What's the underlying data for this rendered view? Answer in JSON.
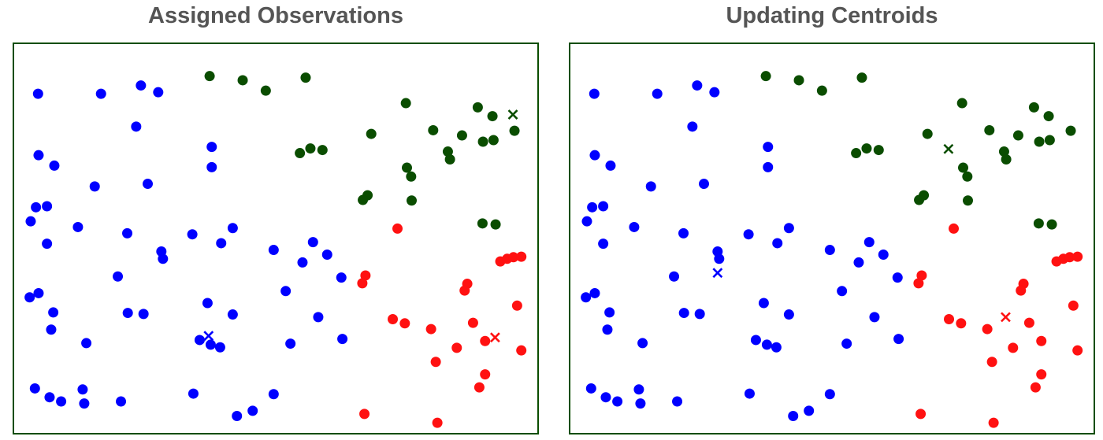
{
  "colors": {
    "blue": "#0000ff",
    "green": "#0a4d00",
    "red": "#ff1111",
    "frame": "#0a4d00",
    "title": "#555555"
  },
  "chart_data": [
    {
      "type": "scatter",
      "title": "Assigned Observations",
      "xlim": [
        0,
        100
      ],
      "ylim": [
        0,
        75
      ],
      "grid": false,
      "series": [
        {
          "color": "blue",
          "marker": "circle",
          "points": [
            [
              4.7,
              65.3
            ],
            [
              16.7,
              65.3
            ],
            [
              24.3,
              66.9
            ],
            [
              27.6,
              65.6
            ],
            [
              23.4,
              59.0
            ],
            [
              37.8,
              55.1
            ],
            [
              37.8,
              51.2
            ],
            [
              4.8,
              53.5
            ],
            [
              7.8,
              51.5
            ],
            [
              4.3,
              43.5
            ],
            [
              6.4,
              43.7
            ],
            [
              25.6,
              48.0
            ],
            [
              15.5,
              47.5
            ],
            [
              3.3,
              40.8
            ],
            [
              12.3,
              39.7
            ],
            [
              6.4,
              36.5
            ],
            [
              21.7,
              38.5
            ],
            [
              28.2,
              35.0
            ],
            [
              28.5,
              33.6
            ],
            [
              34.1,
              38.3
            ],
            [
              39.6,
              36.6
            ],
            [
              41.8,
              39.5
            ],
            [
              49.6,
              35.3
            ],
            [
              57.1,
              36.8
            ],
            [
              59.8,
              34.4
            ],
            [
              55.1,
              32.9
            ],
            [
              62.5,
              30.0
            ],
            [
              19.9,
              30.2
            ],
            [
              3.1,
              26.2
            ],
            [
              4.8,
              27.0
            ],
            [
              7.6,
              23.3
            ],
            [
              37.0,
              25.1
            ],
            [
              51.9,
              27.4
            ],
            [
              21.8,
              23.2
            ],
            [
              24.8,
              23.0
            ],
            [
              41.8,
              22.9
            ],
            [
              58.1,
              22.4
            ],
            [
              7.2,
              20.0
            ],
            [
              13.9,
              17.4
            ],
            [
              35.5,
              18.0
            ],
            [
              37.6,
              17.1
            ],
            [
              39.4,
              16.6
            ],
            [
              52.8,
              17.3
            ],
            [
              62.7,
              18.2
            ],
            [
              4.1,
              8.7
            ],
            [
              6.9,
              7.0
            ],
            [
              9.1,
              6.2
            ],
            [
              13.2,
              8.5
            ],
            [
              13.5,
              5.8
            ],
            [
              20.5,
              6.2
            ],
            [
              34.3,
              7.7
            ],
            [
              42.6,
              3.4
            ],
            [
              45.6,
              4.4
            ],
            [
              49.6,
              7.6
            ]
          ]
        },
        {
          "color": "green",
          "marker": "circle",
          "points": [
            [
              37.4,
              68.7
            ],
            [
              43.7,
              67.9
            ],
            [
              48.1,
              65.9
            ],
            [
              55.7,
              68.4
            ],
            [
              74.8,
              63.5
            ],
            [
              68.2,
              57.6
            ],
            [
              80.0,
              58.3
            ],
            [
              85.5,
              57.3
            ],
            [
              88.5,
              62.7
            ],
            [
              91.3,
              61.0
            ],
            [
              54.6,
              53.9
            ],
            [
              56.6,
              54.8
            ],
            [
              58.9,
              54.5
            ],
            [
              82.8,
              54.2
            ],
            [
              83.2,
              52.7
            ],
            [
              75.0,
              51.1
            ],
            [
              75.8,
              49.4
            ],
            [
              67.5,
              45.8
            ],
            [
              66.6,
              44.9
            ],
            [
              75.9,
              44.8
            ],
            [
              89.5,
              56.1
            ],
            [
              91.5,
              56.4
            ],
            [
              95.5,
              58.2
            ],
            [
              89.4,
              40.4
            ],
            [
              91.9,
              40.2
            ]
          ]
        },
        {
          "color": "red",
          "marker": "circle",
          "points": [
            [
              73.2,
              39.4
            ],
            [
              92.8,
              33.1
            ],
            [
              94.1,
              33.6
            ],
            [
              95.3,
              33.9
            ],
            [
              96.8,
              34.0
            ],
            [
              67.1,
              30.4
            ],
            [
              66.5,
              28.9
            ],
            [
              86.5,
              28.8
            ],
            [
              86.0,
              27.5
            ],
            [
              96.0,
              24.6
            ],
            [
              72.3,
              22.0
            ],
            [
              74.6,
              21.2
            ],
            [
              79.6,
              20.1
            ],
            [
              87.6,
              21.3
            ],
            [
              89.9,
              17.8
            ],
            [
              84.5,
              16.5
            ],
            [
              96.8,
              16.0
            ],
            [
              80.5,
              13.8
            ],
            [
              89.9,
              11.4
            ],
            [
              88.8,
              8.9
            ],
            [
              66.9,
              3.8
            ],
            [
              80.8,
              2.1
            ]
          ]
        },
        {
          "color": "blue",
          "marker": "x",
          "points": [
            [
              37.2,
              18.8
            ]
          ]
        },
        {
          "color": "green",
          "marker": "x",
          "points": [
            [
              95.2,
              61.3
            ]
          ]
        },
        {
          "color": "red",
          "marker": "x",
          "points": [
            [
              91.8,
              18.5
            ]
          ]
        }
      ]
    },
    {
      "type": "scatter",
      "title": "Updating Centroids",
      "xlim": [
        0,
        100
      ],
      "ylim": [
        0,
        75
      ],
      "grid": false,
      "series": [
        {
          "color": "blue",
          "marker": "circle",
          "points": [
            [
              4.7,
              65.3
            ],
            [
              16.7,
              65.3
            ],
            [
              24.3,
              66.9
            ],
            [
              27.6,
              65.6
            ],
            [
              23.4,
              59.0
            ],
            [
              37.8,
              55.1
            ],
            [
              37.8,
              51.2
            ],
            [
              4.8,
              53.5
            ],
            [
              7.8,
              51.5
            ],
            [
              4.3,
              43.5
            ],
            [
              6.4,
              43.7
            ],
            [
              25.6,
              48.0
            ],
            [
              15.5,
              47.5
            ],
            [
              3.3,
              40.8
            ],
            [
              12.3,
              39.7
            ],
            [
              6.4,
              36.5
            ],
            [
              21.7,
              38.5
            ],
            [
              28.2,
              35.0
            ],
            [
              28.5,
              33.6
            ],
            [
              34.1,
              38.3
            ],
            [
              39.6,
              36.6
            ],
            [
              41.8,
              39.5
            ],
            [
              49.6,
              35.3
            ],
            [
              57.1,
              36.8
            ],
            [
              59.8,
              34.4
            ],
            [
              55.1,
              32.9
            ],
            [
              62.5,
              30.0
            ],
            [
              19.9,
              30.2
            ],
            [
              3.1,
              26.2
            ],
            [
              4.8,
              27.0
            ],
            [
              7.6,
              23.3
            ],
            [
              37.0,
              25.1
            ],
            [
              51.9,
              27.4
            ],
            [
              21.8,
              23.2
            ],
            [
              24.8,
              23.0
            ],
            [
              41.8,
              22.9
            ],
            [
              58.1,
              22.4
            ],
            [
              7.2,
              20.0
            ],
            [
              13.9,
              17.4
            ],
            [
              35.5,
              18.0
            ],
            [
              37.6,
              17.1
            ],
            [
              39.4,
              16.6
            ],
            [
              52.8,
              17.3
            ],
            [
              62.7,
              18.2
            ],
            [
              4.1,
              8.7
            ],
            [
              6.9,
              7.0
            ],
            [
              9.1,
              6.2
            ],
            [
              13.2,
              8.5
            ],
            [
              13.5,
              5.8
            ],
            [
              20.5,
              6.2
            ],
            [
              34.3,
              7.7
            ],
            [
              42.6,
              3.4
            ],
            [
              45.6,
              4.4
            ],
            [
              49.6,
              7.6
            ]
          ]
        },
        {
          "color": "green",
          "marker": "circle",
          "points": [
            [
              37.4,
              68.7
            ],
            [
              43.7,
              67.9
            ],
            [
              48.1,
              65.9
            ],
            [
              55.7,
              68.4
            ],
            [
              74.8,
              63.5
            ],
            [
              68.2,
              57.6
            ],
            [
              80.0,
              58.3
            ],
            [
              85.5,
              57.3
            ],
            [
              88.5,
              62.7
            ],
            [
              91.3,
              61.0
            ],
            [
              54.6,
              53.9
            ],
            [
              56.6,
              54.8
            ],
            [
              58.9,
              54.5
            ],
            [
              82.8,
              54.2
            ],
            [
              83.2,
              52.7
            ],
            [
              75.0,
              51.1
            ],
            [
              75.8,
              49.4
            ],
            [
              67.5,
              45.8
            ],
            [
              66.6,
              44.9
            ],
            [
              75.9,
              44.8
            ],
            [
              89.5,
              56.1
            ],
            [
              91.5,
              56.4
            ],
            [
              95.5,
              58.2
            ],
            [
              89.4,
              40.4
            ],
            [
              91.9,
              40.2
            ]
          ]
        },
        {
          "color": "red",
          "marker": "circle",
          "points": [
            [
              73.2,
              39.4
            ],
            [
              92.8,
              33.1
            ],
            [
              94.1,
              33.6
            ],
            [
              95.3,
              33.9
            ],
            [
              96.8,
              34.0
            ],
            [
              67.1,
              30.4
            ],
            [
              66.5,
              28.9
            ],
            [
              86.5,
              28.8
            ],
            [
              86.0,
              27.5
            ],
            [
              96.0,
              24.6
            ],
            [
              72.3,
              22.0
            ],
            [
              74.6,
              21.2
            ],
            [
              79.6,
              20.1
            ],
            [
              87.6,
              21.3
            ],
            [
              89.9,
              17.8
            ],
            [
              84.5,
              16.5
            ],
            [
              96.8,
              16.0
            ],
            [
              80.5,
              13.8
            ],
            [
              89.9,
              11.4
            ],
            [
              88.8,
              8.9
            ],
            [
              66.9,
              3.8
            ],
            [
              80.8,
              2.1
            ]
          ]
        },
        {
          "color": "blue",
          "marker": "x",
          "points": [
            [
              28.2,
              30.9
            ]
          ]
        },
        {
          "color": "green",
          "marker": "x",
          "points": [
            [
              72.2,
              54.7
            ]
          ]
        },
        {
          "color": "red",
          "marker": "x",
          "points": [
            [
              83.1,
              22.4
            ]
          ]
        }
      ]
    }
  ]
}
